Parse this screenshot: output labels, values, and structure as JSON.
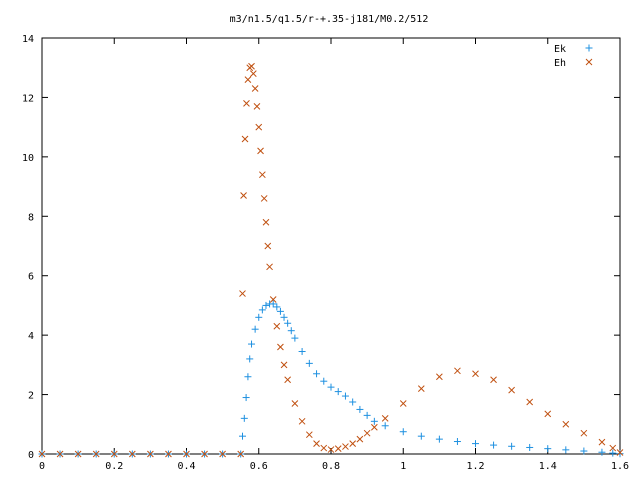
{
  "chart_data": {
    "type": "scatter",
    "title": "m3/n1.5/q1.5/r-+.35-j181/M0.2/512",
    "xlim": [
      0,
      1.6
    ],
    "ylim": [
      0,
      14
    ],
    "x_ticks": [
      "0",
      "0.2",
      "0.4",
      "0.6",
      "0.8",
      "1",
      "1.2",
      "1.4",
      "1.6"
    ],
    "y_ticks": [
      "0",
      "2",
      "4",
      "6",
      "8",
      "10",
      "12",
      "14"
    ],
    "grid": false,
    "legend_position": "top-right",
    "series": [
      {
        "name": "Ek",
        "marker": "plus",
        "color": "#1e90e0",
        "points": [
          [
            0.0,
            0.0
          ],
          [
            0.05,
            0.0
          ],
          [
            0.1,
            0.0
          ],
          [
            0.15,
            0.0
          ],
          [
            0.2,
            0.0
          ],
          [
            0.25,
            0.0
          ],
          [
            0.3,
            0.0
          ],
          [
            0.35,
            0.0
          ],
          [
            0.4,
            0.0
          ],
          [
            0.45,
            0.0
          ],
          [
            0.5,
            0.0
          ],
          [
            0.55,
            0.0
          ],
          [
            0.555,
            0.6
          ],
          [
            0.56,
            1.2
          ],
          [
            0.565,
            1.9
          ],
          [
            0.57,
            2.6
          ],
          [
            0.575,
            3.2
          ],
          [
            0.58,
            3.7
          ],
          [
            0.59,
            4.2
          ],
          [
            0.6,
            4.6
          ],
          [
            0.61,
            4.85
          ],
          [
            0.62,
            5.0
          ],
          [
            0.63,
            5.05
          ],
          [
            0.64,
            5.05
          ],
          [
            0.65,
            4.95
          ],
          [
            0.66,
            4.8
          ],
          [
            0.67,
            4.6
          ],
          [
            0.68,
            4.4
          ],
          [
            0.69,
            4.15
          ],
          [
            0.7,
            3.9
          ],
          [
            0.72,
            3.45
          ],
          [
            0.74,
            3.05
          ],
          [
            0.76,
            2.7
          ],
          [
            0.78,
            2.45
          ],
          [
            0.8,
            2.25
          ],
          [
            0.82,
            2.1
          ],
          [
            0.84,
            1.95
          ],
          [
            0.86,
            1.75
          ],
          [
            0.88,
            1.5
          ],
          [
            0.9,
            1.3
          ],
          [
            0.92,
            1.1
          ],
          [
            0.95,
            0.95
          ],
          [
            1.0,
            0.75
          ],
          [
            1.05,
            0.6
          ],
          [
            1.1,
            0.5
          ],
          [
            1.15,
            0.42
          ],
          [
            1.2,
            0.35
          ],
          [
            1.25,
            0.3
          ],
          [
            1.3,
            0.26
          ],
          [
            1.35,
            0.22
          ],
          [
            1.4,
            0.18
          ],
          [
            1.45,
            0.14
          ],
          [
            1.5,
            0.1
          ],
          [
            1.55,
            0.06
          ],
          [
            1.58,
            0.03
          ],
          [
            1.6,
            0.01
          ]
        ]
      },
      {
        "name": "Eh",
        "marker": "cross",
        "color": "#c05010",
        "points": [
          [
            0.0,
            0.0
          ],
          [
            0.05,
            0.0
          ],
          [
            0.1,
            0.0
          ],
          [
            0.15,
            0.0
          ],
          [
            0.2,
            0.0
          ],
          [
            0.25,
            0.0
          ],
          [
            0.3,
            0.0
          ],
          [
            0.35,
            0.0
          ],
          [
            0.4,
            0.0
          ],
          [
            0.45,
            0.0
          ],
          [
            0.5,
            0.0
          ],
          [
            0.55,
            0.0
          ],
          [
            0.555,
            5.4
          ],
          [
            0.558,
            8.7
          ],
          [
            0.562,
            10.6
          ],
          [
            0.566,
            11.8
          ],
          [
            0.57,
            12.6
          ],
          [
            0.575,
            13.0
          ],
          [
            0.58,
            13.05
          ],
          [
            0.585,
            12.8
          ],
          [
            0.59,
            12.3
          ],
          [
            0.595,
            11.7
          ],
          [
            0.6,
            11.0
          ],
          [
            0.605,
            10.2
          ],
          [
            0.61,
            9.4
          ],
          [
            0.615,
            8.6
          ],
          [
            0.62,
            7.8
          ],
          [
            0.625,
            7.0
          ],
          [
            0.63,
            6.3
          ],
          [
            0.64,
            5.2
          ],
          [
            0.65,
            4.3
          ],
          [
            0.66,
            3.6
          ],
          [
            0.67,
            3.0
          ],
          [
            0.68,
            2.5
          ],
          [
            0.7,
            1.7
          ],
          [
            0.72,
            1.1
          ],
          [
            0.74,
            0.65
          ],
          [
            0.76,
            0.35
          ],
          [
            0.78,
            0.2
          ],
          [
            0.8,
            0.15
          ],
          [
            0.82,
            0.18
          ],
          [
            0.84,
            0.25
          ],
          [
            0.86,
            0.35
          ],
          [
            0.88,
            0.5
          ],
          [
            0.9,
            0.7
          ],
          [
            0.92,
            0.9
          ],
          [
            0.95,
            1.2
          ],
          [
            1.0,
            1.7
          ],
          [
            1.05,
            2.2
          ],
          [
            1.1,
            2.6
          ],
          [
            1.15,
            2.8
          ],
          [
            1.2,
            2.7
          ],
          [
            1.25,
            2.5
          ],
          [
            1.3,
            2.15
          ],
          [
            1.35,
            1.75
          ],
          [
            1.4,
            1.35
          ],
          [
            1.45,
            1.0
          ],
          [
            1.5,
            0.7
          ],
          [
            1.55,
            0.4
          ],
          [
            1.58,
            0.2
          ],
          [
            1.6,
            0.05
          ]
        ]
      }
    ]
  }
}
